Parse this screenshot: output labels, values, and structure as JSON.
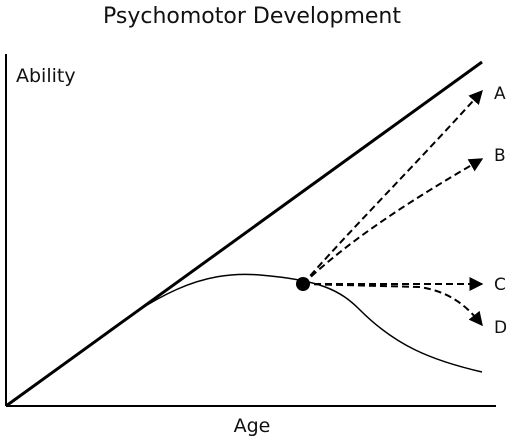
{
  "title": "Psychomotor Development",
  "axes": {
    "y_label": "Ability",
    "x_label": "Age"
  },
  "trajectories": [
    {
      "id": "A",
      "label": "A",
      "style": "dashed"
    },
    {
      "id": "B",
      "label": "B",
      "style": "dashed"
    },
    {
      "id": "C",
      "label": "C",
      "style": "dashed"
    },
    {
      "id": "D",
      "label": "D",
      "style": "dashed"
    }
  ],
  "colors": {
    "line": "#000000",
    "background": "#ffffff"
  }
}
